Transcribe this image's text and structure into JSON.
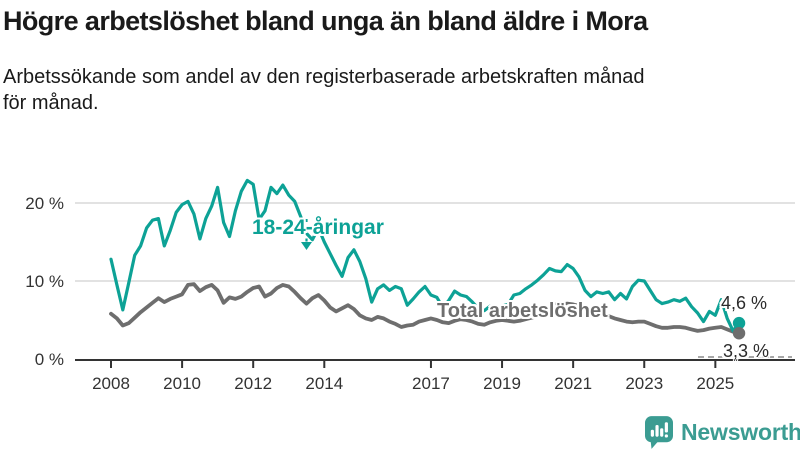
{
  "header": {
    "title": "Högre arbetslöshet bland unga än bland äldre i Mora",
    "subtitle_line1": "Arbetssökande som andel av den registerbaserade arbetskraften månad",
    "subtitle_line2": "för månad."
  },
  "chart_data": {
    "type": "line",
    "x_start_year": 2008,
    "x_step_months": 2,
    "x_end": "2025-09",
    "ylim": [
      0,
      24
    ],
    "grid": "horizontal",
    "yticks": [
      {
        "value": 0,
        "label": "0 %"
      },
      {
        "value": 10,
        "label": "10 %"
      },
      {
        "value": 20,
        "label": "20 %"
      }
    ],
    "xticks": [
      {
        "year": 2008,
        "label": "2008"
      },
      {
        "year": 2010,
        "label": "2010"
      },
      {
        "year": 2012,
        "label": "2012"
      },
      {
        "year": 2014,
        "label": "2014"
      },
      {
        "year": 2017,
        "label": "2017"
      },
      {
        "year": 2019,
        "label": "2019"
      },
      {
        "year": 2021,
        "label": "2021"
      },
      {
        "year": 2023,
        "label": "2023"
      },
      {
        "year": 2025,
        "label": "2025"
      }
    ],
    "series": [
      {
        "name": "18-24-åringar",
        "color": "#0da296",
        "width": 3.2,
        "end_value_label": "4,6 %",
        "values": [
          12.8,
          9.5,
          6.3,
          9.8,
          13.3,
          14.5,
          16.8,
          17.8,
          18.0,
          14.5,
          16.5,
          18.8,
          19.8,
          20.2,
          18.6,
          15.4,
          18.0,
          19.6,
          22.0,
          17.5,
          15.7,
          19.0,
          21.5,
          22.9,
          22.4,
          17.9,
          19.0,
          22.0,
          21.2,
          22.3,
          21.0,
          20.2,
          18.3,
          16.1,
          15.3,
          16.8,
          15.0,
          13.5,
          12.0,
          10.6,
          13.0,
          14.0,
          12.5,
          10.3,
          7.3,
          9.0,
          9.5,
          8.8,
          9.3,
          9.0,
          6.9,
          7.7,
          8.6,
          9.3,
          8.2,
          7.9,
          6.6,
          7.5,
          8.7,
          8.2,
          8.0,
          7.3,
          6.5,
          6.2,
          6.8,
          6.5,
          6.8,
          7.0,
          8.2,
          8.4,
          9.0,
          9.5,
          10.1,
          10.8,
          11.6,
          11.3,
          11.2,
          12.1,
          11.6,
          10.5,
          8.8,
          8.0,
          8.6,
          8.4,
          8.6,
          7.6,
          8.4,
          7.7,
          9.3,
          10.1,
          10.0,
          8.8,
          7.6,
          7.1,
          7.3,
          7.6,
          7.4,
          7.8,
          6.7,
          5.9,
          4.8,
          6.1,
          5.6,
          7.6,
          5.2,
          3.6,
          4.6
        ]
      },
      {
        "name": "Total arbetslöshet",
        "color": "#6e6e6e",
        "width": 3.8,
        "end_value_label": "3,3 %",
        "values": [
          5.8,
          5.2,
          4.3,
          4.6,
          5.3,
          6.0,
          6.6,
          7.2,
          7.8,
          7.3,
          7.7,
          8.0,
          8.3,
          9.5,
          9.6,
          8.7,
          9.2,
          9.5,
          8.8,
          7.2,
          7.9,
          7.7,
          8.0,
          8.6,
          9.1,
          9.3,
          8.0,
          8.4,
          9.1,
          9.5,
          9.3,
          8.6,
          7.8,
          7.1,
          7.8,
          8.2,
          7.5,
          6.6,
          6.1,
          6.5,
          6.9,
          6.4,
          5.6,
          5.2,
          5.0,
          5.4,
          5.2,
          4.8,
          4.5,
          4.1,
          4.3,
          4.4,
          4.8,
          5.0,
          5.2,
          5.0,
          4.7,
          4.6,
          4.9,
          5.1,
          5.0,
          4.8,
          4.5,
          4.4,
          4.7,
          4.9,
          5.0,
          4.9,
          4.8,
          4.9,
          5.1,
          5.3,
          5.5,
          6.0,
          6.7,
          7.0,
          7.0,
          7.1,
          7.0,
          6.8,
          6.3,
          6.0,
          5.8,
          5.6,
          5.5,
          5.2,
          5.0,
          4.8,
          4.7,
          4.8,
          4.8,
          4.5,
          4.2,
          4.0,
          4.0,
          4.1,
          4.1,
          4.0,
          3.8,
          3.6,
          3.7,
          3.9,
          4.0,
          4.1,
          3.8,
          3.5,
          3.3
        ]
      }
    ],
    "colors": {
      "grid": "#d9d9d9",
      "axis": "#333333",
      "tick_text": "#333333",
      "leader_dash": "#8a8a8a"
    }
  },
  "annotations": {
    "youth_label": "18-24-åringar",
    "total_label": "Total arbetslöshet",
    "end_youth": "4,6 %",
    "end_total": "3,3 %"
  },
  "footer": {
    "brand": "Newsworthy",
    "brand_color": "#3b9c92"
  }
}
